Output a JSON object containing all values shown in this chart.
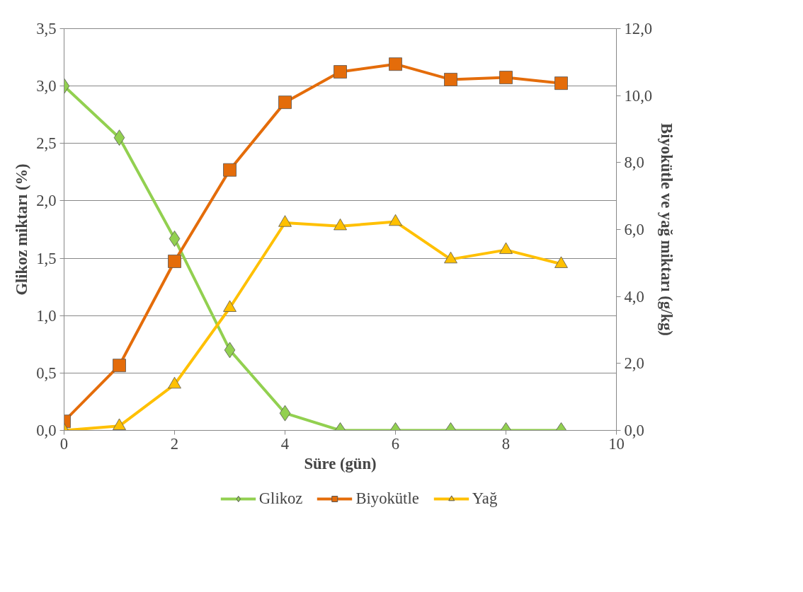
{
  "chart_data": {
    "type": "line",
    "xlabel": "Süre (gün)",
    "ylabel": "Glikoz miktarı (%)",
    "y2label": "Biyokütle ve yağ miktarı (g/kg)",
    "x": [
      0,
      1,
      2,
      3,
      4,
      5,
      6,
      7,
      8,
      9
    ],
    "series": [
      {
        "name": "Glikoz",
        "color": "#92d050",
        "marker": "diamond",
        "values": [
          3.0,
          2.55,
          1.67,
          0.7,
          0.15,
          0.0,
          0.0,
          0.0,
          0.0,
          0.0
        ]
      },
      {
        "name": "Biyokütle",
        "color": "#e46c0a",
        "marker": "square",
        "axis": "y2",
        "values": [
          0.27,
          1.94,
          5.05,
          7.78,
          9.8,
          10.71,
          10.94,
          10.48,
          10.54,
          10.37
        ]
      },
      {
        "name": "Yağ",
        "color": "#ffc000",
        "marker": "triangle",
        "axis": "y2",
        "values": [
          0.0,
          0.13,
          1.37,
          3.66,
          6.2,
          6.1,
          6.23,
          5.11,
          5.39,
          4.97
        ]
      }
    ],
    "xlim": [
      0,
      10
    ],
    "xticks": [
      0,
      2,
      4,
      6,
      8,
      10
    ],
    "ylim": [
      0,
      3.5
    ],
    "yticks": [
      {
        "value": 0,
        "label": "0,0"
      },
      {
        "value": 0.5,
        "label": "0,5"
      },
      {
        "value": 1,
        "label": "1,0"
      },
      {
        "value": 1.5,
        "label": "1,5"
      },
      {
        "value": 2,
        "label": "2,0"
      },
      {
        "value": 2.5,
        "label": "2,5"
      },
      {
        "value": 3,
        "label": "3,0"
      },
      {
        "value": 3.5,
        "label": "3,5"
      }
    ],
    "y2lim": [
      0,
      12
    ],
    "y2ticks": [
      {
        "value": 0,
        "label": "0,0"
      },
      {
        "value": 2,
        "label": "2,0"
      },
      {
        "value": 4,
        "label": "4,0"
      },
      {
        "value": 6,
        "label": "6,0"
      },
      {
        "value": 8,
        "label": "8,0"
      },
      {
        "value": 10,
        "label": "10,0"
      },
      {
        "value": 12,
        "label": "12,0"
      }
    ],
    "grid": "y",
    "legend": "bottom",
    "line_style": "solid"
  }
}
